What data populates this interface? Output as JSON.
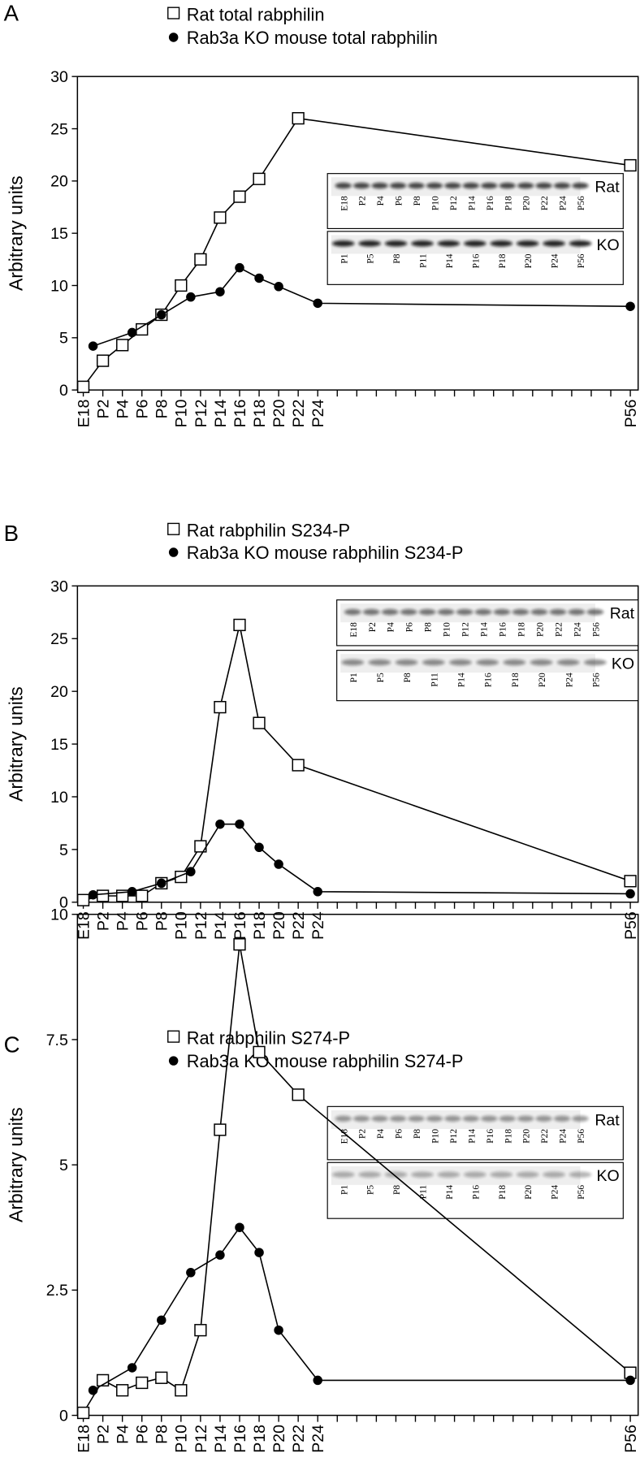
{
  "chart_data": [
    {
      "type": "line",
      "panel_label": "A",
      "ylabel": "Arbitrary units",
      "ylim": [
        0,
        30
      ],
      "yticks": [
        0,
        5,
        10,
        15,
        20,
        25,
        30
      ],
      "xlim": [
        -0.6,
        56.8
      ],
      "xticks": [
        {
          "value": 0,
          "label": "E18"
        },
        {
          "value": 2,
          "label": "P2"
        },
        {
          "value": 4,
          "label": "P4"
        },
        {
          "value": 6,
          "label": "P6"
        },
        {
          "value": 8,
          "label": "P8"
        },
        {
          "value": 10,
          "label": "P10"
        },
        {
          "value": 12,
          "label": "P12"
        },
        {
          "value": 14,
          "label": "P14"
        },
        {
          "value": 16,
          "label": "P16"
        },
        {
          "value": 18,
          "label": "P18"
        },
        {
          "value": 20,
          "label": "P20"
        },
        {
          "value": 22,
          "label": "P22"
        },
        {
          "value": 24,
          "label": "P24"
        },
        {
          "value": 56,
          "label": "P56"
        }
      ],
      "xminor_ticks": [
        26,
        28,
        30,
        32,
        34,
        36,
        38,
        40,
        42,
        44,
        46,
        48,
        50,
        52,
        54
      ],
      "series": [
        {
          "name": "Rat total rabphilin",
          "marker": "square-open",
          "color": "#000000",
          "x": [
            0,
            2,
            4,
            6,
            8,
            10,
            12,
            14,
            16,
            18,
            22,
            56
          ],
          "values": [
            0.3,
            2.8,
            4.3,
            5.8,
            7.2,
            10,
            12.5,
            16.5,
            18.5,
            20.2,
            26,
            21.5
          ]
        },
        {
          "name": "Rab3a KO mouse total rabphilin",
          "marker": "circle-filled",
          "color": "#000000",
          "x": [
            1,
            5,
            8,
            11,
            14,
            16,
            18,
            20,
            24,
            56
          ],
          "values": [
            4.2,
            5.5,
            7.2,
            8.9,
            9.4,
            11.7,
            10.7,
            9.9,
            8.3,
            8.0
          ]
        }
      ],
      "inset": {
        "rat_label": "Rat",
        "rat_lanes": [
          "E18",
          "P2",
          "P4",
          "P6",
          "P8",
          "P10",
          "P12",
          "P14",
          "P16",
          "P18",
          "P20",
          "P22",
          "P24",
          "P56"
        ],
        "ko_label": "KO",
        "ko_lanes": [
          "P1",
          "P5",
          "P8",
          "P11",
          "P14",
          "P16",
          "P18",
          "P20",
          "P24",
          "P56"
        ]
      }
    },
    {
      "type": "line",
      "panel_label": "B",
      "ylabel": "Arbitrary units",
      "ylim": [
        0,
        30
      ],
      "yticks": [
        0,
        5,
        10,
        15,
        20,
        25,
        30
      ],
      "xlim": [
        -0.6,
        56.8
      ],
      "xticks": [
        {
          "value": 0,
          "label": "E18"
        },
        {
          "value": 2,
          "label": "P2"
        },
        {
          "value": 4,
          "label": "P4"
        },
        {
          "value": 6,
          "label": "P6"
        },
        {
          "value": 8,
          "label": "P8"
        },
        {
          "value": 10,
          "label": "P10"
        },
        {
          "value": 12,
          "label": "P12"
        },
        {
          "value": 14,
          "label": "P14"
        },
        {
          "value": 16,
          "label": "P16"
        },
        {
          "value": 18,
          "label": "P18"
        },
        {
          "value": 20,
          "label": "P20"
        },
        {
          "value": 22,
          "label": "P22"
        },
        {
          "value": 24,
          "label": "P24"
        },
        {
          "value": 56,
          "label": "P56"
        }
      ],
      "xminor_ticks": [
        26,
        28,
        30,
        32,
        34,
        36,
        38,
        40,
        42,
        44,
        46,
        48,
        50,
        52,
        54
      ],
      "series": [
        {
          "name": "Rat rabphilin S234-P",
          "marker": "square-open",
          "color": "#000000",
          "x": [
            0,
            2,
            4,
            6,
            8,
            10,
            12,
            14,
            16,
            18,
            22,
            56
          ],
          "values": [
            0.2,
            0.6,
            0.6,
            0.6,
            1.8,
            2.4,
            5.3,
            18.5,
            26.3,
            17,
            13,
            2.0
          ]
        },
        {
          "name": "Rab3a KO mouse rabphilin S234-P",
          "marker": "circle-filled",
          "color": "#000000",
          "x": [
            1,
            5,
            8,
            11,
            14,
            16,
            18,
            20,
            24,
            56
          ],
          "values": [
            0.7,
            1.0,
            1.8,
            2.9,
            7.4,
            7.4,
            5.2,
            3.6,
            1.0,
            0.8
          ]
        }
      ],
      "inset": {
        "rat_label": "Rat",
        "rat_lanes": [
          "E18",
          "P2",
          "P4",
          "P6",
          "P8",
          "P10",
          "P12",
          "P14",
          "P16",
          "P18",
          "P20",
          "P22",
          "P24",
          "P56"
        ],
        "ko_label": "KO",
        "ko_lanes": [
          "P1",
          "P5",
          "P8",
          "P11",
          "P14",
          "P16",
          "P18",
          "P20",
          "P24",
          "P56"
        ]
      }
    },
    {
      "type": "line",
      "panel_label": "C",
      "ylabel": "Arbitrary units",
      "ylim": [
        0,
        10
      ],
      "yticks": [
        0,
        2.5,
        5,
        7.5,
        10
      ],
      "xlim": [
        -0.6,
        56.8
      ],
      "xticks": [
        {
          "value": 0,
          "label": "E18"
        },
        {
          "value": 2,
          "label": "P2"
        },
        {
          "value": 4,
          "label": "P4"
        },
        {
          "value": 6,
          "label": "P6"
        },
        {
          "value": 8,
          "label": "P8"
        },
        {
          "value": 10,
          "label": "P10"
        },
        {
          "value": 12,
          "label": "P12"
        },
        {
          "value": 14,
          "label": "P14"
        },
        {
          "value": 16,
          "label": "P16"
        },
        {
          "value": 18,
          "label": "P18"
        },
        {
          "value": 20,
          "label": "P20"
        },
        {
          "value": 22,
          "label": "P22"
        },
        {
          "value": 24,
          "label": "P24"
        },
        {
          "value": 56,
          "label": "P56"
        }
      ],
      "xminor_ticks": [
        26,
        28,
        30,
        32,
        34,
        36,
        38,
        40,
        42,
        44,
        46,
        48,
        50,
        52,
        54
      ],
      "series": [
        {
          "name": "Rat rabphilin S274-P",
          "marker": "square-open",
          "color": "#000000",
          "x": [
            0,
            2,
            4,
            6,
            8,
            10,
            12,
            14,
            16,
            18,
            22,
            56
          ],
          "values": [
            0.05,
            0.7,
            0.5,
            0.65,
            0.75,
            0.5,
            1.7,
            5.7,
            9.4,
            7.25,
            6.4,
            0.85
          ]
        },
        {
          "name": "Rab3a KO mouse rabphilin S274-P",
          "marker": "circle-filled",
          "color": "#000000",
          "x": [
            1,
            5,
            8,
            11,
            14,
            16,
            18,
            20,
            24,
            56
          ],
          "values": [
            0.5,
            0.95,
            1.9,
            2.85,
            3.2,
            3.75,
            3.25,
            1.7,
            0.7,
            0.7
          ]
        }
      ],
      "inset": {
        "rat_label": "Rat",
        "rat_lanes": [
          "E18",
          "P2",
          "P4",
          "P6",
          "P8",
          "P10",
          "P12",
          "P14",
          "P16",
          "P18",
          "P20",
          "P22",
          "P24",
          "P56"
        ],
        "ko_label": "KO",
        "ko_lanes": [
          "P1",
          "P5",
          "P8",
          "P11",
          "P14",
          "P16",
          "P18",
          "P20",
          "P24",
          "P56"
        ]
      }
    }
  ]
}
